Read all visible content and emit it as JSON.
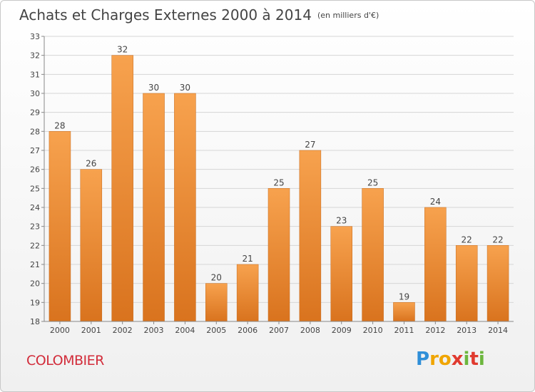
{
  "header": {
    "title": "Achats et Charges Externes 2000 à 2014",
    "unit": "(en milliers d'€)"
  },
  "footer": {
    "city": "COLOMBIER",
    "logo": "Proxiti"
  },
  "colors": {
    "bar_top": "#f7a24e",
    "bar_bottom": "#d9731e",
    "city": "#d22c3a"
  },
  "chart_data": {
    "type": "bar",
    "title": "Achats et Charges Externes 2000 à 2014",
    "xlabel": "",
    "ylabel": "",
    "ylim": [
      18,
      33
    ],
    "yticks": [
      18,
      19,
      20,
      21,
      22,
      23,
      24,
      25,
      26,
      27,
      28,
      29,
      30,
      31,
      32,
      33
    ],
    "grid": true,
    "categories": [
      "2000",
      "2001",
      "2002",
      "2003",
      "2004",
      "2005",
      "2006",
      "2007",
      "2008",
      "2009",
      "2010",
      "2011",
      "2012",
      "2013",
      "2014"
    ],
    "values": [
      28,
      26,
      32,
      30,
      30,
      20,
      21,
      25,
      27,
      23,
      25,
      19,
      24,
      22,
      22
    ]
  }
}
